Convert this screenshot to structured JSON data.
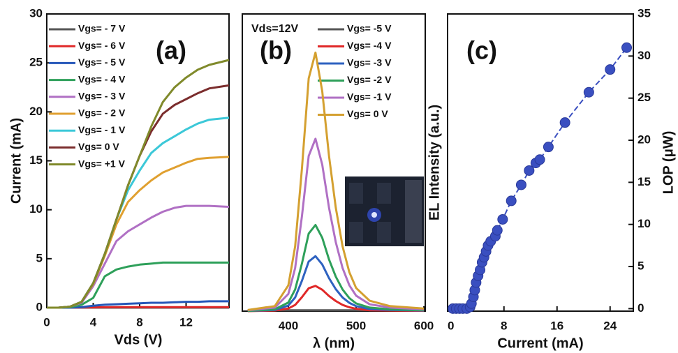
{
  "chart_data": [
    {
      "type": "line",
      "panel_label": "(a)",
      "xlabel": "Vds (V)",
      "ylabel": "Current (mA)",
      "x": [
        0,
        1,
        2,
        3,
        4,
        5,
        6,
        7,
        8,
        9,
        10,
        11,
        12,
        13,
        14,
        15.7
      ],
      "xlim": [
        0,
        15.7
      ],
      "ylim": [
        0,
        30
      ],
      "xticks": [
        0,
        4,
        8,
        12
      ],
      "yticks": [
        0,
        5,
        10,
        15,
        20,
        25,
        30
      ],
      "series": [
        {
          "name": "Vgs= - 7 V",
          "color": "#555555",
          "values": [
            0,
            0,
            0,
            0,
            0,
            0,
            0,
            0,
            0,
            0,
            0,
            0,
            0,
            0,
            0,
            0
          ]
        },
        {
          "name": "Vgs= - 6 V",
          "color": "#e02828",
          "values": [
            0,
            0,
            0,
            0.02,
            0.03,
            0.04,
            0.05,
            0.05,
            0.05,
            0.05,
            0.05,
            0.05,
            0.05,
            0.05,
            0.05,
            0.05
          ]
        },
        {
          "name": "Vgs= - 5 V",
          "color": "#2456b8",
          "values": [
            0,
            0,
            0,
            0.05,
            0.2,
            0.3,
            0.35,
            0.4,
            0.45,
            0.5,
            0.5,
            0.55,
            0.6,
            0.6,
            0.65,
            0.65
          ]
        },
        {
          "name": "Vgs= - 4 V",
          "color": "#2ea05a",
          "values": [
            0,
            0,
            0.05,
            0.3,
            1,
            3.2,
            3.9,
            4.2,
            4.4,
            4.5,
            4.6,
            4.6,
            4.6,
            4.6,
            4.6,
            4.6
          ]
        },
        {
          "name": "Vgs= - 3 V",
          "color": "#b070c4",
          "values": [
            0,
            0,
            0.1,
            0.5,
            2.2,
            4.5,
            6.8,
            7.8,
            8.5,
            9.2,
            9.8,
            10.2,
            10.4,
            10.4,
            10.4,
            10.3
          ]
        },
        {
          "name": "Vgs= - 2 V",
          "color": "#e0a030",
          "values": [
            0,
            0,
            0.1,
            0.6,
            2.4,
            5.3,
            8.5,
            10.8,
            12,
            13,
            13.8,
            14.3,
            14.8,
            15.2,
            15.3,
            15.4
          ]
        },
        {
          "name": "Vgs= - 1 V",
          "color": "#3cc8d8",
          "values": [
            0,
            0,
            0.1,
            0.6,
            2.5,
            5.5,
            9,
            12,
            14,
            15.8,
            16.8,
            17.5,
            18.2,
            18.8,
            19.2,
            19.4
          ]
        },
        {
          "name": "Vgs=  0  V",
          "color": "#7b2d2d",
          "values": [
            0,
            0,
            0.1,
            0.6,
            2.5,
            5.5,
            9,
            12.5,
            15.5,
            18,
            19.8,
            20.7,
            21.3,
            21.9,
            22.4,
            22.7
          ]
        },
        {
          "name": "Vgs= +1 V",
          "color": "#808a2b",
          "values": [
            0,
            0,
            0.1,
            0.6,
            2.5,
            5.5,
            9,
            12.5,
            15.5,
            18.5,
            21,
            22.5,
            23.5,
            24.3,
            24.8,
            25.3
          ]
        }
      ]
    },
    {
      "type": "line",
      "panel_label": "(b)",
      "annotation": "Vds=12V",
      "xlabel": "λ (nm)",
      "x": [
        340,
        380,
        400,
        410,
        420,
        430,
        440,
        450,
        460,
        470,
        480,
        490,
        500,
        520,
        550,
        600
      ],
      "xlim": [
        332,
        602
      ],
      "ylim": [
        0,
        100
      ],
      "xticks": [
        400,
        500,
        600
      ],
      "series": [
        {
          "name": "Vgs= -5 V",
          "color": "#555555",
          "values": [
            0.3,
            0.3,
            0.3,
            0.3,
            0.3,
            0.3,
            0.3,
            0.3,
            0.3,
            0.3,
            0.3,
            0.3,
            0.3,
            0.3,
            0.3,
            0.3
          ]
        },
        {
          "name": "Vgs= -4 V",
          "color": "#e02828",
          "values": [
            0,
            0.2,
            0.9,
            2.1,
            4.7,
            7.7,
            8.5,
            7.2,
            5.1,
            3.4,
            2.1,
            1.3,
            0.8,
            0.3,
            0.2,
            0.1
          ]
        },
        {
          "name": "Vgs= -3 V",
          "color": "#2e62c0",
          "values": [
            0.1,
            0.4,
            1.9,
            4.6,
            10.2,
            16.7,
            18.5,
            15.7,
            11.1,
            7.4,
            4.6,
            2.8,
            1.7,
            0.7,
            0.4,
            0.2
          ]
        },
        {
          "name": "Vgs= -2 V",
          "color": "#2ea05a",
          "values": [
            0.1,
            0.6,
            2.9,
            7.3,
            16,
            26.1,
            29,
            24.7,
            17.4,
            11.6,
            7.3,
            4.4,
            2.6,
            1.2,
            0.6,
            0.3
          ]
        },
        {
          "name": "Vgs= -1 V",
          "color": "#b070c4",
          "values": [
            0.3,
            1.2,
            5.8,
            14.5,
            31.9,
            52.2,
            58,
            49.3,
            34.8,
            23.2,
            14.5,
            8.7,
            5.2,
            2.3,
            1.2,
            0.6
          ]
        },
        {
          "name": "Vgs= 0 V",
          "color": "#d4a030",
          "values": [
            0.4,
            1.7,
            8.7,
            21.8,
            47.9,
            78.3,
            87,
            74,
            52.2,
            34.8,
            21.8,
            13.1,
            7.8,
            3.5,
            1.7,
            0.9
          ]
        }
      ]
    },
    {
      "type": "scatter",
      "panel_label": "(c)",
      "xlabel": "Current (mA)",
      "ylabel": "EL Intensity (a.u.)",
      "y2label": "LOP (μW)",
      "x": [
        0.3,
        0.8,
        1.3,
        1.8,
        2.4,
        2.9,
        3.1,
        3.4,
        3.6,
        3.8,
        4.1,
        4.4,
        4.7,
        5.0,
        5.3,
        5.6,
        6.0,
        6.7,
        7.0,
        7.8,
        9.1,
        10.6,
        11.8,
        12.8,
        13.4,
        14.7,
        17.2,
        20.8,
        24,
        26.5
      ],
      "xlim": [
        -0.5,
        27.5
      ],
      "y2lim": [
        -0.3,
        35
      ],
      "xticks": [
        0,
        8,
        16,
        24
      ],
      "y2ticks": [
        0,
        5,
        10,
        15,
        20,
        25,
        30,
        35
      ],
      "series": [
        {
          "color": "#3a4fc0",
          "axis": "y2",
          "values": [
            0,
            0,
            0,
            0,
            0,
            0.2,
            0.6,
            1.4,
            2.2,
            3.1,
            3.9,
            4.6,
            5.5,
            6.1,
            6.8,
            7.5,
            8.0,
            8.6,
            9.3,
            10.6,
            12.8,
            14.7,
            16.4,
            17.3,
            17.7,
            19.2,
            22.1,
            25.7,
            28.4,
            31.0
          ]
        }
      ]
    }
  ]
}
